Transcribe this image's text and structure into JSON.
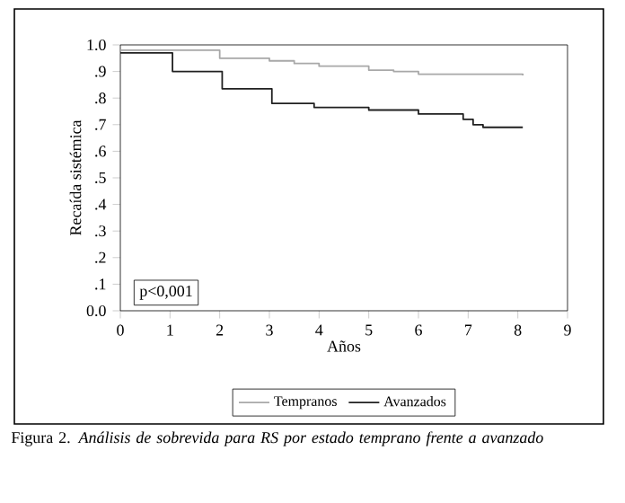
{
  "chart_data": {
    "type": "step",
    "xlabel": "Años",
    "ylabel": "Recaída sistémica",
    "annotations": [
      "p<0,001",
      "Figura 2. *Análisis de sobrevida para RS por estado temprano frente a avanzado*"
    ],
    "series": [
      {
        "name": "Tempranos",
        "color": "#a8a8a8",
        "x": [
          0,
          2.0,
          3.0,
          3.5,
          4.0,
          5.0,
          5.5,
          6.0,
          8.1
        ],
        "values": [
          0.98,
          0.95,
          0.94,
          0.93,
          0.92,
          0.905,
          0.9,
          0.89,
          0.885
        ]
      },
      {
        "name": "Avanzados",
        "color": "#202020",
        "x": [
          0,
          1.05,
          2.05,
          3.05,
          3.9,
          5.0,
          6.0,
          6.9,
          7.1,
          7.3,
          8.1
        ],
        "values": [
          0.97,
          0.9,
          0.835,
          0.78,
          0.765,
          0.755,
          0.74,
          0.72,
          0.7,
          0.69,
          0.69
        ]
      }
    ],
    "xlim": [
      0,
      9
    ],
    "ylim": [
      0,
      1
    ],
    "xticks": [
      0,
      1,
      2,
      3,
      4,
      5,
      6,
      7,
      8,
      9
    ],
    "yticks": [
      {
        "value": 0,
        "label": "0.0"
      },
      {
        "value": 0.1,
        "label": ".1"
      },
      {
        "value": 0.2,
        "label": ".2"
      },
      {
        "value": 0.3,
        "label": ".3"
      },
      {
        "value": 0.4,
        "label": ".4"
      },
      {
        "value": 0.5,
        "label": ".5"
      },
      {
        "value": 0.6,
        "label": ".6"
      },
      {
        "value": 0.7,
        "label": ".7"
      },
      {
        "value": 0.8,
        "label": ".8"
      },
      {
        "value": 0.9,
        "label": ".9"
      },
      {
        "value": 1,
        "label": "1.0"
      }
    ],
    "legend": "bottom",
    "grid": false
  }
}
